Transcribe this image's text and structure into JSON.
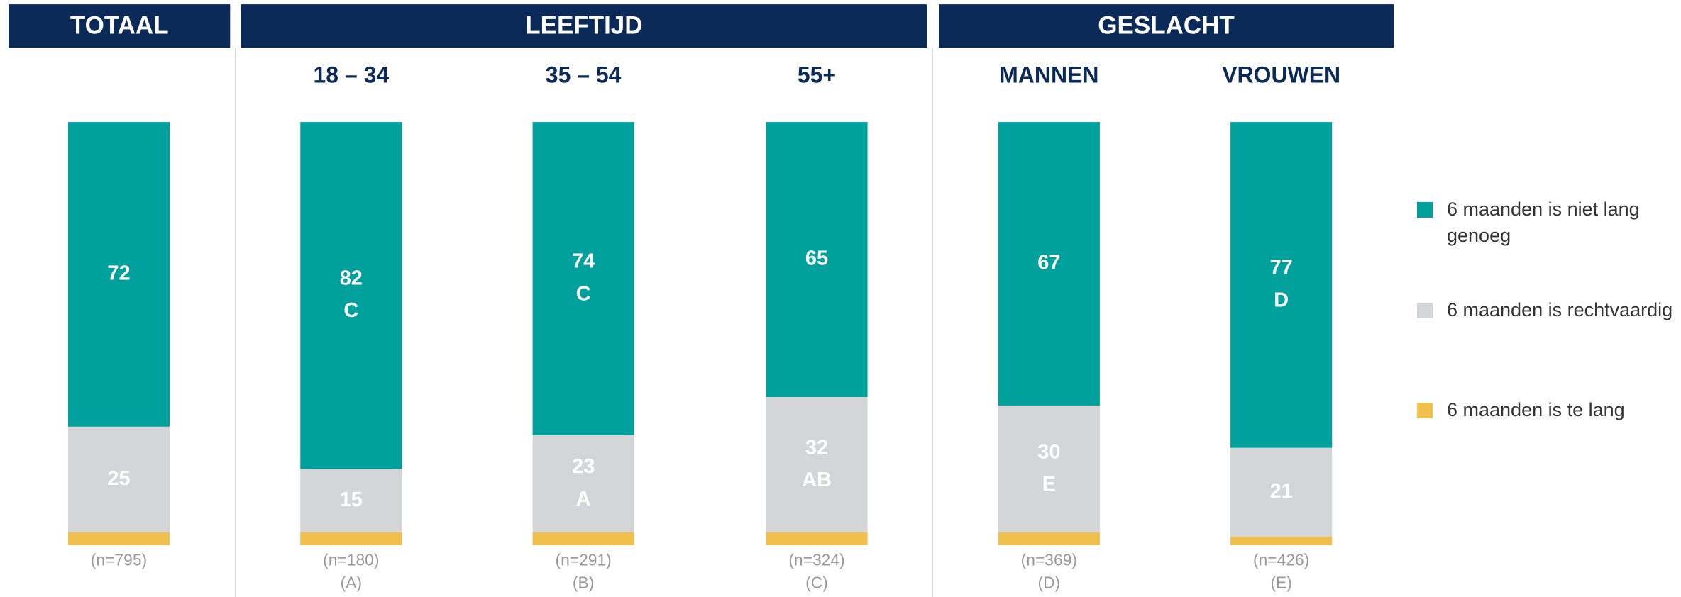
{
  "chart_data": {
    "type": "stacked_bar",
    "groups": [
      "TOTAAL",
      "LEEFTIJD",
      "GESLACHT"
    ],
    "categories": [
      null,
      "18 – 34",
      "35 – 54",
      "55+",
      "MANNEN",
      "VROUWEN"
    ],
    "sample_sizes": [
      "(n=795)",
      "(n=180)",
      "(n=291)",
      "(n=324)",
      "(n=369)",
      "(n=426)"
    ],
    "column_codes": [
      null,
      "(A)",
      "(B)",
      "(C)",
      "(D)",
      "(E)"
    ],
    "ylim": [
      0,
      100
    ],
    "series": [
      {
        "name": "6 maanden is niet lang genoeg",
        "color": "#00a09d",
        "values": [
          72,
          82,
          74,
          65,
          67,
          77
        ],
        "significance": [
          null,
          "C",
          "C",
          null,
          null,
          "D"
        ]
      },
      {
        "name": "6 maanden is rechtvaardig",
        "color": "#d3d5d6",
        "values": [
          25,
          15,
          23,
          32,
          30,
          21
        ],
        "significance": [
          null,
          null,
          "A",
          "AB",
          "E",
          null
        ]
      },
      {
        "name": "6 maanden is te lang",
        "color": "#f0bf4c",
        "values": [
          3,
          3,
          3,
          3,
          3,
          2
        ]
      }
    ]
  }
}
